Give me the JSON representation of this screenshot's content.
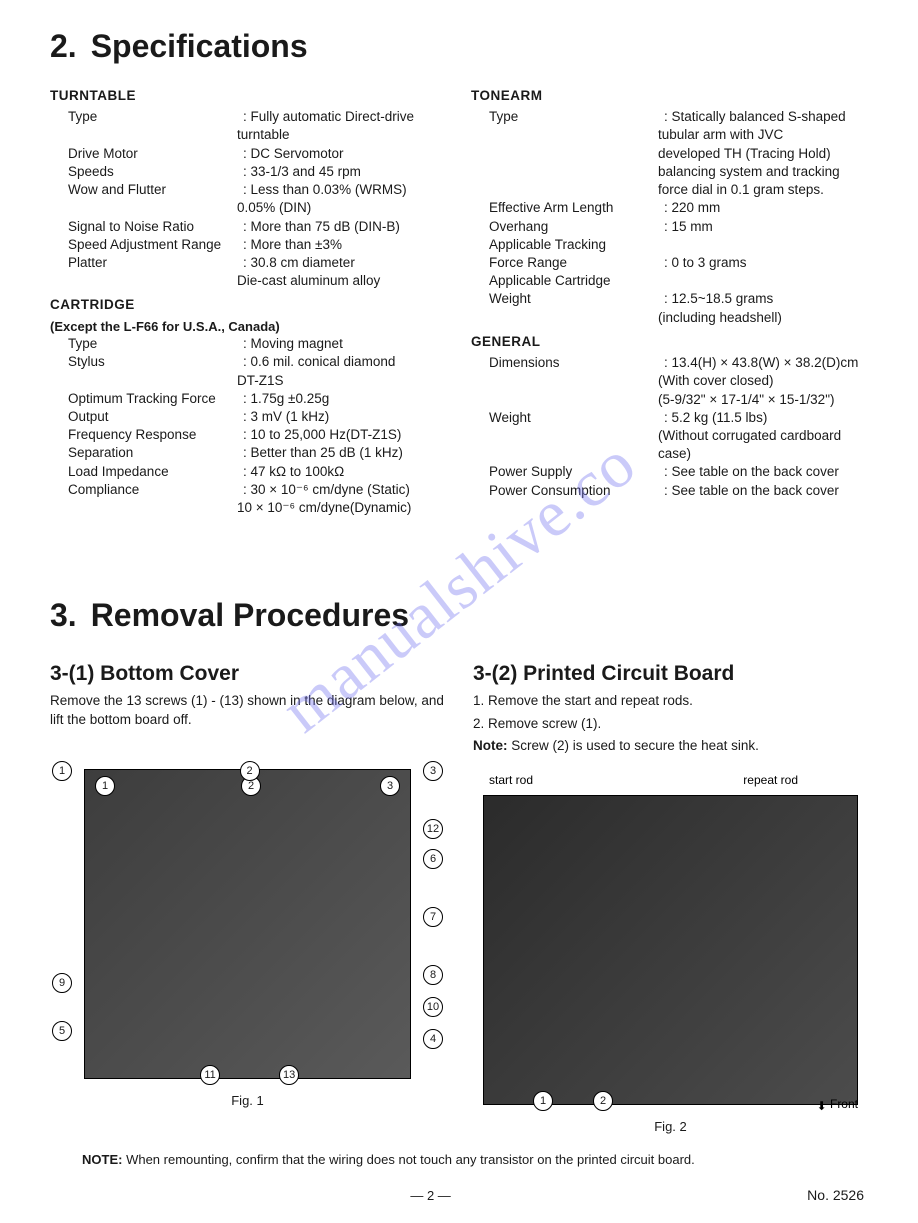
{
  "watermark": "manualshive.co",
  "section2": {
    "number": "2.",
    "title": "Specifications",
    "groups_left": [
      {
        "head": "TURNTABLE",
        "rows": [
          {
            "label": "Type",
            "value": "Fully automatic Direct-drive",
            "cont": [
              "turntable"
            ]
          },
          {
            "label": "Drive Motor",
            "value": "DC Servomotor"
          },
          {
            "label": "Speeds",
            "value": "33-1/3 and 45 rpm"
          },
          {
            "label": "Wow and Flutter",
            "value": "Less than 0.03% (WRMS)",
            "cont": [
              "0.05% (DIN)"
            ]
          },
          {
            "label": "Signal to Noise Ratio",
            "value": "More than 75 dB (DIN-B)"
          },
          {
            "label": "Speed Adjustment Range",
            "value": "More than ±3%"
          },
          {
            "label": "Platter",
            "value": "30.8 cm diameter",
            "cont": [
              "Die-cast aluminum alloy"
            ]
          }
        ]
      },
      {
        "head": "CARTRIDGE",
        "subnote": "(Except the L-F66 for U.S.A., Canada)",
        "rows": [
          {
            "label": "Type",
            "value": "Moving magnet"
          },
          {
            "label": "Stylus",
            "value": "0.6 mil. conical diamond",
            "cont": [
              "DT-Z1S"
            ]
          },
          {
            "label": "Optimum Tracking Force",
            "value": "1.75g ±0.25g"
          },
          {
            "label": "Output",
            "value": "3 mV (1 kHz)"
          },
          {
            "label": "Frequency Response",
            "value": "10 to 25,000 Hz(DT-Z1S)"
          },
          {
            "label": "Separation",
            "value": "Better than 25 dB (1 kHz)"
          },
          {
            "label": "Load Impedance",
            "value": "47 kΩ to 100kΩ"
          },
          {
            "label": "Compliance",
            "value": "30 × 10⁻⁶ cm/dyne (Static)",
            "cont": [
              "10 × 10⁻⁶ cm/dyne(Dynamic)"
            ]
          }
        ]
      }
    ],
    "groups_right": [
      {
        "head": "TONEARM",
        "rows": [
          {
            "label": "Type",
            "value": "Statically balanced S-shaped",
            "cont": [
              "tubular arm with JVC",
              "developed TH (Tracing Hold)",
              "balancing system and tracking",
              "force dial in 0.1 gram steps."
            ]
          },
          {
            "label": "Effective Arm Length",
            "value": "220 mm"
          },
          {
            "label": "Overhang",
            "value": "15 mm"
          },
          {
            "label": "Applicable Tracking",
            "value": "",
            "novalue": true
          },
          {
            "label": "Force Range",
            "value": "0 to 3 grams"
          },
          {
            "label": "Applicable Cartridge",
            "value": "",
            "novalue": true
          },
          {
            "label": "Weight",
            "value": "12.5~18.5 grams",
            "cont": [
              "(including headshell)"
            ]
          }
        ]
      },
      {
        "head": "GENERAL",
        "rows": [
          {
            "label": "Dimensions",
            "value": "13.4(H) × 43.8(W) × 38.2(D)cm",
            "cont": [
              "(With cover closed)",
              "(5-9/32\" × 17-1/4\" × 15-1/32\")"
            ]
          },
          {
            "label": "Weight",
            "value": "5.2 kg (11.5 lbs)",
            "cont": [
              "(Without corrugated cardboard",
              "case)"
            ]
          },
          {
            "label": "Power Supply",
            "value": "See table on the back cover"
          },
          {
            "label": "Power Consumption",
            "value": "See table on the back cover"
          }
        ]
      }
    ]
  },
  "section3": {
    "number": "3.",
    "title": "Removal Procedures",
    "left": {
      "heading": "3-(1)  Bottom Cover",
      "text": "Remove the 13 screws (1) - (13) shown in the diagram below, and lift the bottom board off.",
      "fig_caption": "Fig. 1",
      "callouts": [
        "1",
        "2",
        "3",
        "12",
        "6",
        "7",
        "8",
        "9",
        "5",
        "10",
        "4",
        "11",
        "13"
      ]
    },
    "right": {
      "heading": "3-(2)  Printed Circuit Board",
      "steps": [
        "1. Remove the start and repeat rods.",
        "2. Remove screw (1)."
      ],
      "note_label": "Note:",
      "note_text": " Screw (2) is used to secure the heat sink.",
      "labels": {
        "start": "start rod",
        "repeat": "repeat rod",
        "front": "Front"
      },
      "fig_caption": "Fig. 2",
      "callouts": [
        "1",
        "2"
      ]
    },
    "footnote_label": "NOTE:",
    "footnote_text": " When remounting, confirm that the wiring does not touch any transistor on the printed circuit board."
  },
  "footer": {
    "page": "— 2 —",
    "docno": "No. 2526"
  }
}
